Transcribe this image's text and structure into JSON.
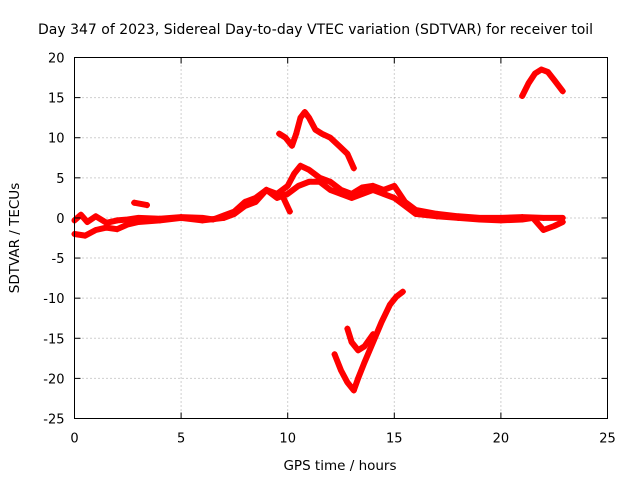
{
  "chart_data": {
    "type": "line",
    "title": "Day 347 of 2023, Sidereal Day-to-day VTEC variation (SDTVAR) for receiver toil",
    "xlabel": "GPS time / hours",
    "ylabel": "SDTVAR / TECUs",
    "xlim": [
      0,
      25
    ],
    "ylim": [
      -25,
      20
    ],
    "xticks": [
      0,
      5,
      10,
      15,
      20,
      25
    ],
    "yticks": [
      -25,
      -20,
      -15,
      -10,
      -5,
      0,
      5,
      10,
      15,
      20
    ],
    "grid": true,
    "color": "#ff0000",
    "series": [
      {
        "name": "arc-baseline-upper",
        "x": [
          0,
          0.3,
          0.6,
          1.0,
          1.5,
          2.0,
          2.5,
          3,
          4,
          5,
          6,
          6.5,
          7,
          7.5,
          8,
          8.5,
          9,
          9.5,
          10,
          10.3,
          10.6,
          11,
          11.5,
          12,
          12.5,
          13,
          13.5,
          14,
          14.5,
          15,
          15.5,
          16,
          17,
          18,
          19,
          20,
          21,
          22,
          22.9
        ],
        "y": [
          -0.3,
          0.4,
          -0.5,
          0.2,
          -0.6,
          -0.3,
          -0.2,
          0,
          -0.1,
          0.1,
          0,
          -0.2,
          0.3,
          0.8,
          2,
          2.5,
          3.5,
          3,
          4,
          5.5,
          6.5,
          6,
          5,
          4.5,
          3.5,
          3,
          3.8,
          4,
          3.5,
          4,
          2,
          1,
          0.5,
          0.2,
          0,
          0,
          0.1,
          0,
          0
        ]
      },
      {
        "name": "arc-baseline-lower",
        "x": [
          0,
          0.5,
          1,
          1.5,
          2,
          2.5,
          3,
          4,
          5,
          6,
          7,
          7.5,
          8,
          8.5,
          9,
          9.5,
          10,
          10.5,
          11,
          11.5,
          12,
          12.5,
          13,
          13.5,
          14,
          14.5,
          15,
          15.5,
          16,
          17,
          18,
          19,
          20,
          21,
          21.5,
          22,
          22.5,
          22.9
        ],
        "y": [
          -2,
          -2.2,
          -1.5,
          -1.2,
          -1.4,
          -0.8,
          -0.5,
          -0.3,
          0,
          -0.3,
          0,
          0.5,
          1.5,
          2,
          3.5,
          2.5,
          3,
          4,
          4.5,
          4.5,
          3.5,
          3,
          2.5,
          3,
          3.5,
          3,
          2.5,
          1.5,
          0.5,
          0.2,
          0,
          -0.2,
          -0.3,
          -0.2,
          0,
          -1.5,
          -1,
          -0.5
        ]
      },
      {
        "name": "arc-2",
        "x": [
          2.8,
          3.4
        ],
        "y": [
          1.9,
          1.6
        ]
      },
      {
        "name": "arc-3",
        "x": [
          9.8,
          10.1
        ],
        "y": [
          2.5,
          0.8
        ]
      },
      {
        "name": "arc-4",
        "x": [
          9.6,
          9.9,
          10.2,
          10.4,
          10.6,
          10.8,
          11.0,
          11.3,
          11.6,
          12.0,
          12.4,
          12.8,
          13.1
        ],
        "y": [
          10.5,
          10,
          9,
          10.5,
          12.5,
          13.2,
          12.5,
          11,
          10.5,
          10,
          9,
          8,
          6.2
        ]
      },
      {
        "name": "arc-5",
        "x": [
          21,
          21.3,
          21.6,
          21.9,
          22.2,
          22.5,
          22.9
        ],
        "y": [
          15.2,
          16.8,
          18,
          18.5,
          18.2,
          17.2,
          15.8
        ]
      },
      {
        "name": "arc-6",
        "x": [
          12.2,
          12.5,
          12.8,
          13.1,
          13.3,
          13.6,
          14,
          14.4,
          14.8,
          15.1,
          15.4
        ],
        "y": [
          -17,
          -19,
          -20.5,
          -21.5,
          -20,
          -18,
          -15.5,
          -13,
          -10.8,
          -9.8,
          -9.2
        ]
      },
      {
        "name": "arc-7",
        "x": [
          12.8,
          13,
          13.3,
          13.6,
          14
        ],
        "y": [
          -13.8,
          -15.5,
          -16.5,
          -16,
          -14.5
        ]
      }
    ]
  }
}
